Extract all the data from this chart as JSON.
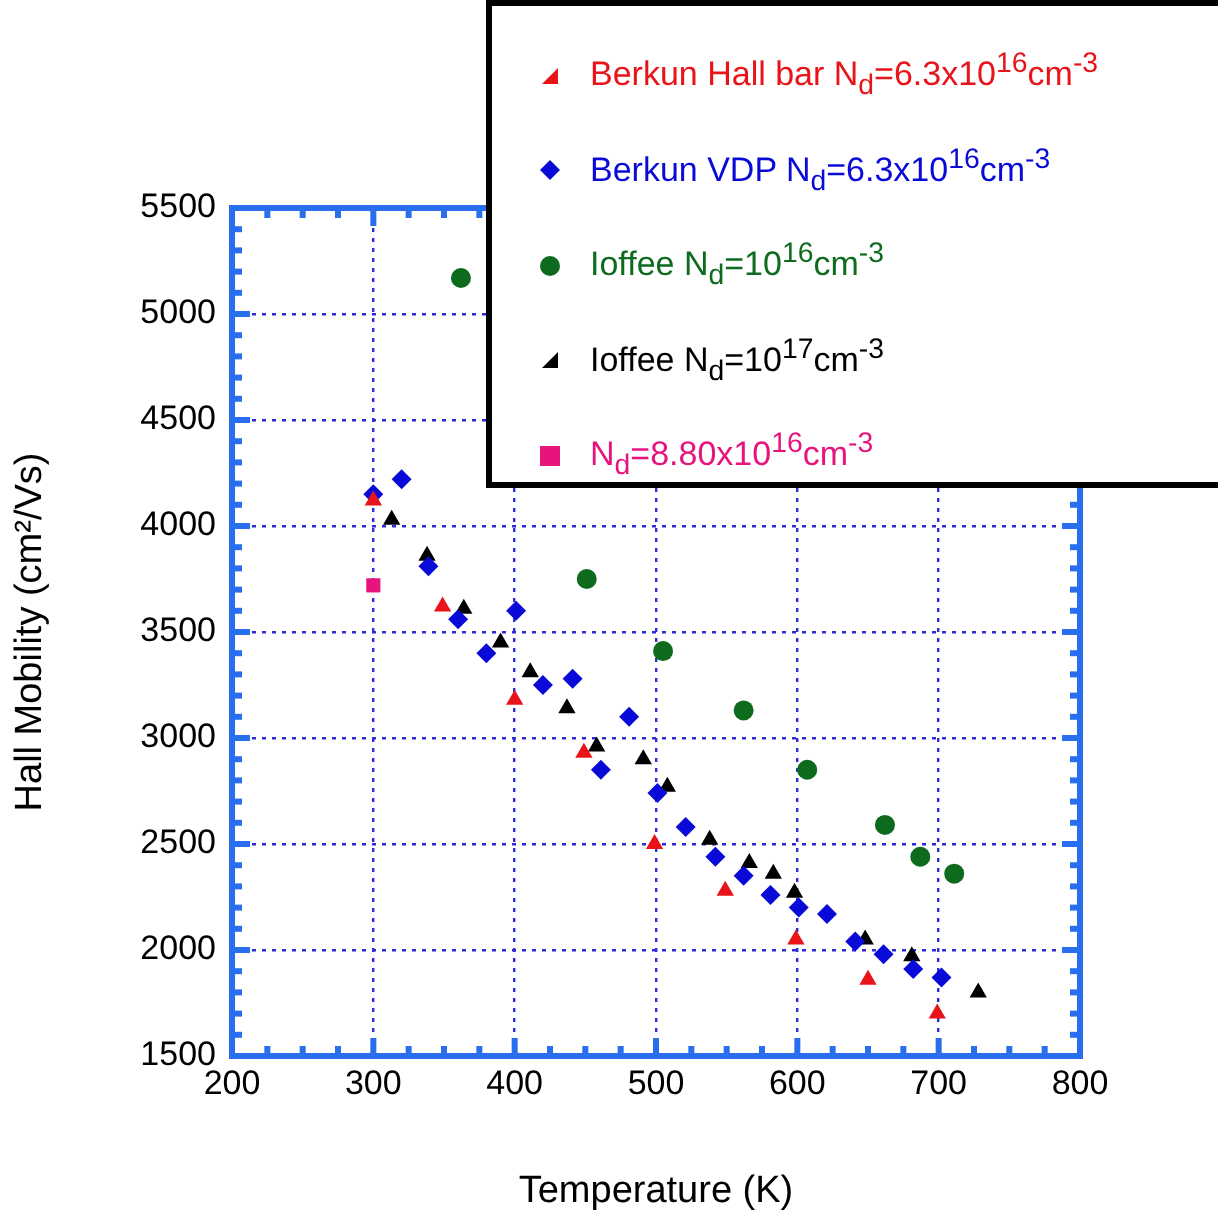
{
  "chart_data": {
    "type": "scatter",
    "xlabel": "Temperature (K)",
    "ylabel": "Hall Mobility (cm²/Vs)",
    "xlim": [
      200,
      800
    ],
    "xticks": [
      200,
      300,
      400,
      500,
      600,
      700,
      800
    ],
    "ylim": [
      1500,
      5500
    ],
    "yticks": [
      1500,
      2000,
      2500,
      3000,
      3500,
      4000,
      4500,
      5000,
      5500
    ],
    "grid": true,
    "legend": "top right",
    "series": [
      {
        "name": "Berkun Hall bar N$_{d}$=6.3x10$^{16}$cm$^{-3}$",
        "color": "#e8141a",
        "marker": "triangle",
        "x": [
          300,
          349,
          400,
          449,
          499,
          549,
          599,
          650,
          699
        ],
        "values": [
          4120,
          3620,
          3180,
          2930,
          2500,
          2280,
          2050,
          1860,
          1700
        ]
      },
      {
        "name": "Berkun VDP N$_{d}$=6.3x10$^{16}$cm$^{-3}$",
        "color": "#0a0ad8",
        "marker": "diamond",
        "x": [
          300,
          320,
          339,
          360,
          380,
          401,
          420,
          441,
          461,
          481,
          501,
          521,
          542,
          562,
          581,
          601,
          621,
          641,
          661,
          682,
          702
        ],
        "values": [
          4150,
          4220,
          3810,
          3560,
          3400,
          3600,
          3250,
          3280,
          2850,
          3100,
          2740,
          2580,
          2440,
          2350,
          2260,
          2200,
          2170,
          2040,
          1980,
          1910,
          1870
        ]
      },
      {
        "name": "Ioffee N$_{d}$=10$^{16}$cm$^{-3}$",
        "color": "#0e6b1e",
        "marker": "circle",
        "x": [
          362,
          451,
          505,
          562,
          607,
          662,
          687,
          711
        ],
        "values": [
          5170,
          3750,
          3410,
          3130,
          2850,
          2590,
          2440,
          2360
        ]
      },
      {
        "name": "Ioffee N$_{d}$=10$^{17}$cm$^{-3}$",
        "color": "#000000",
        "marker": "triangle",
        "x": [
          313,
          338,
          364,
          390,
          411,
          437,
          458,
          491,
          508,
          538,
          566,
          583,
          598,
          648,
          681,
          728
        ],
        "values": [
          4030,
          3860,
          3610,
          3450,
          3310,
          3140,
          2960,
          2900,
          2770,
          2520,
          2410,
          2360,
          2270,
          2050,
          1970,
          1800
        ]
      },
      {
        "name": "N$_{d}$=8.80x10$^{16}$cm$^{-3}$",
        "color": "#e8147e",
        "marker": "square",
        "x": [
          300
        ],
        "values": [
          3720
        ]
      }
    ]
  }
}
